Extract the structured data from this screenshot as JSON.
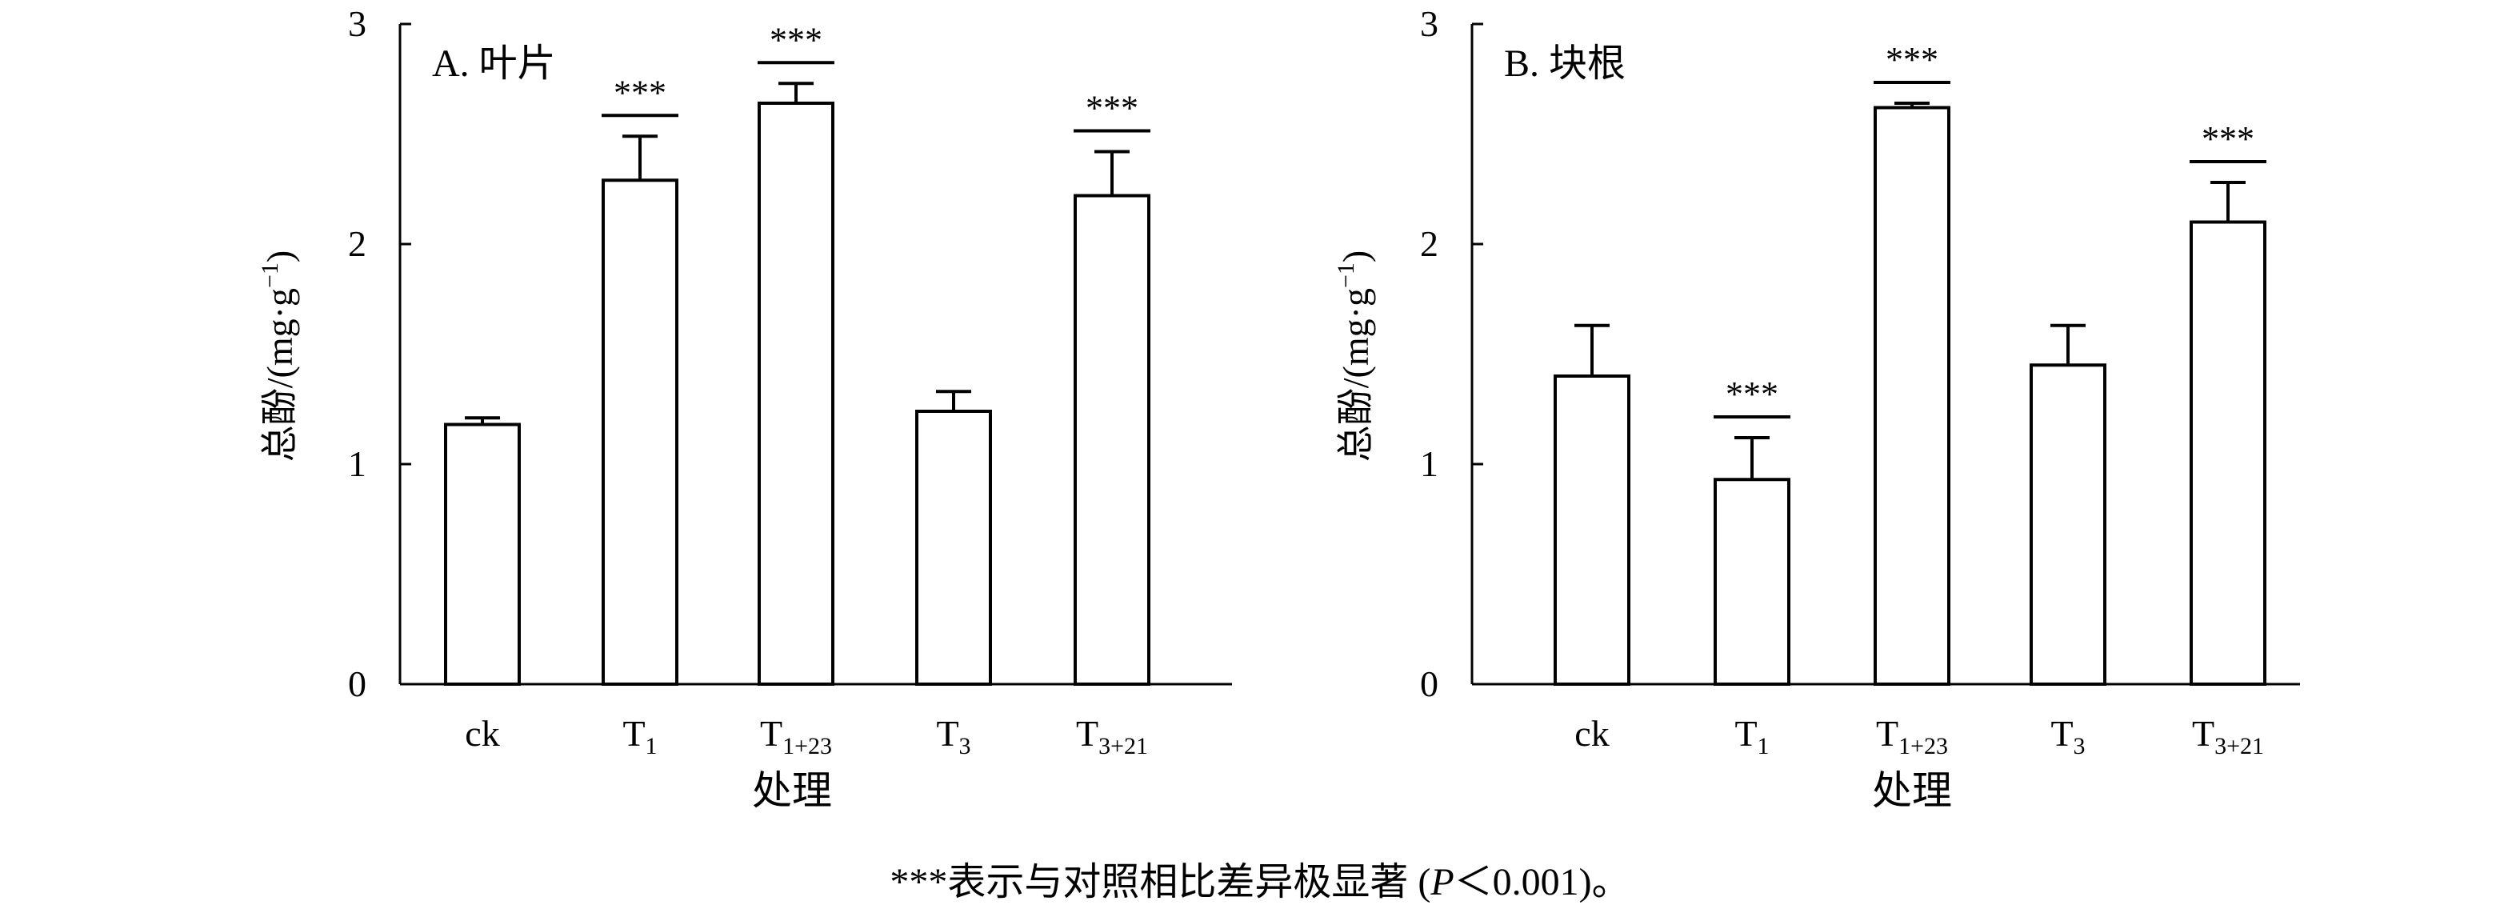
{
  "chart_data": [
    {
      "type": "bar",
      "title": "A. 叶片",
      "ylabel": "总酚/(mg·g",
      "ylabel_sup": "−1",
      "ylabel_tail": ")",
      "xlabel": "处理",
      "ylim": [
        0,
        3
      ],
      "yticks": [
        "0",
        "1",
        "2",
        "3"
      ],
      "categories": [
        {
          "main": "ck",
          "sub": ""
        },
        {
          "main": "T",
          "sub": "1"
        },
        {
          "main": "T",
          "sub": "1+23"
        },
        {
          "main": "T",
          "sub": "3"
        },
        {
          "main": "T",
          "sub": "3+21"
        }
      ],
      "values": [
        1.18,
        2.29,
        2.64,
        1.24,
        2.22
      ],
      "errors": [
        0.03,
        0.2,
        0.09,
        0.09,
        0.2
      ],
      "significance": [
        "",
        "***",
        "***",
        "",
        "***"
      ]
    },
    {
      "type": "bar",
      "title": "B. 块根",
      "ylabel": "总酚/(mg·g",
      "ylabel_sup": "−1",
      "ylabel_tail": ")",
      "xlabel": "处理",
      "ylim": [
        0,
        3
      ],
      "yticks": [
        "0",
        "1",
        "2",
        "3"
      ],
      "categories": [
        {
          "main": "ck",
          "sub": ""
        },
        {
          "main": "T",
          "sub": "1"
        },
        {
          "main": "T",
          "sub": "1+23"
        },
        {
          "main": "T",
          "sub": "3"
        },
        {
          "main": "T",
          "sub": "3+21"
        }
      ],
      "values": [
        1.4,
        0.93,
        2.62,
        1.45,
        2.1
      ],
      "errors": [
        0.23,
        0.19,
        0.02,
        0.18,
        0.18
      ],
      "significance": [
        "",
        "***",
        "***",
        "",
        "***"
      ]
    }
  ],
  "caption": {
    "prefix": "***表示与对照相比差异极显著 (",
    "p": "P",
    "suffix": "＜0.001)。"
  }
}
